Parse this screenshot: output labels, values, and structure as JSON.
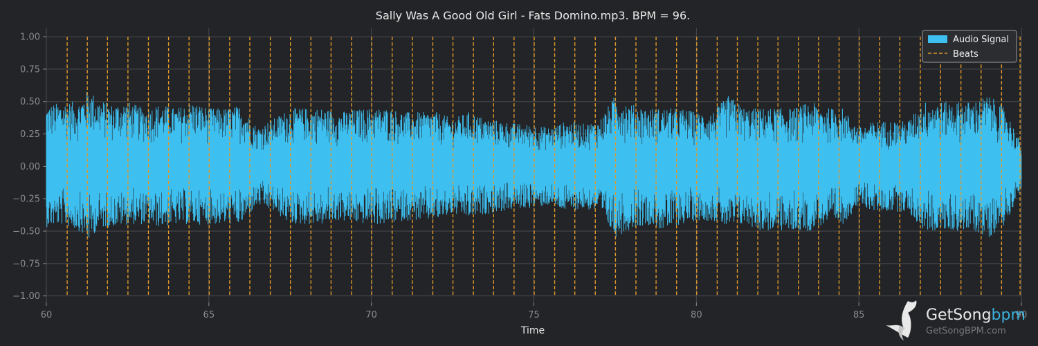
{
  "chart_data": {
    "type": "line",
    "title": "Sally Was A Good Old Girl - Fats Domino.mp3. BPM =  96.",
    "xlabel": "Time",
    "ylabel": "",
    "xlim": [
      60,
      90
    ],
    "ylim": [
      -1.05,
      1.07
    ],
    "x_ticks": [
      60,
      65,
      70,
      75,
      80,
      85,
      90
    ],
    "x_tick_labels": [
      "60",
      "65",
      "70",
      "75",
      "80",
      "85",
      "90"
    ],
    "y_ticks": [
      1.0,
      0.75,
      0.5,
      0.25,
      0.0,
      -0.25,
      -0.5,
      -0.75,
      -1.0
    ],
    "y_tick_labels": [
      "1.00",
      "0.75",
      "0.50",
      "0.25",
      "0.00",
      "−0.25",
      "−0.50",
      "−0.75",
      "−1.00"
    ],
    "grid": true,
    "legend_position": "top-right",
    "series": [
      {
        "name": "Audio Signal",
        "kind": "waveform",
        "color": "#3dbff0",
        "envelope_x": [
          60.0,
          60.5,
          61.0,
          61.3,
          61.6,
          62.0,
          62.5,
          63.0,
          63.5,
          64.0,
          64.5,
          65.0,
          65.5,
          66.0,
          66.5,
          67.0,
          67.5,
          68.0,
          68.5,
          69.0,
          69.5,
          70.0,
          70.5,
          71.0,
          71.5,
          72.0,
          72.5,
          73.0,
          73.5,
          74.0,
          74.5,
          75.0,
          75.5,
          76.0,
          76.5,
          77.0,
          77.5,
          78.0,
          78.5,
          79.0,
          79.5,
          80.0,
          80.5,
          81.0,
          81.5,
          82.0,
          82.5,
          83.0,
          83.5,
          84.0,
          84.5,
          85.0,
          85.5,
          86.0,
          86.5,
          87.0,
          87.5,
          88.0,
          88.5,
          89.0,
          89.5,
          90.0
        ],
        "envelope_max": [
          0.47,
          0.5,
          0.5,
          0.6,
          0.52,
          0.48,
          0.5,
          0.45,
          0.48,
          0.45,
          0.5,
          0.45,
          0.45,
          0.47,
          0.3,
          0.37,
          0.45,
          0.45,
          0.45,
          0.42,
          0.44,
          0.45,
          0.45,
          0.42,
          0.42,
          0.42,
          0.37,
          0.42,
          0.37,
          0.35,
          0.33,
          0.32,
          0.3,
          0.35,
          0.33,
          0.35,
          0.55,
          0.48,
          0.45,
          0.45,
          0.45,
          0.42,
          0.42,
          0.55,
          0.45,
          0.45,
          0.45,
          0.45,
          0.5,
          0.45,
          0.45,
          0.3,
          0.35,
          0.35,
          0.35,
          0.5,
          0.5,
          0.5,
          0.5,
          0.55,
          0.45,
          0.17
        ],
        "envelope_min": [
          -0.47,
          -0.45,
          -0.5,
          -0.58,
          -0.48,
          -0.47,
          -0.45,
          -0.45,
          -0.47,
          -0.45,
          -0.45,
          -0.45,
          -0.45,
          -0.45,
          -0.3,
          -0.35,
          -0.45,
          -0.45,
          -0.45,
          -0.42,
          -0.44,
          -0.45,
          -0.45,
          -0.42,
          -0.42,
          -0.42,
          -0.37,
          -0.4,
          -0.37,
          -0.35,
          -0.33,
          -0.32,
          -0.3,
          -0.35,
          -0.33,
          -0.35,
          -0.55,
          -0.48,
          -0.45,
          -0.5,
          -0.45,
          -0.42,
          -0.42,
          -0.48,
          -0.45,
          -0.5,
          -0.5,
          -0.5,
          -0.5,
          -0.45,
          -0.45,
          -0.3,
          -0.35,
          -0.35,
          -0.35,
          -0.5,
          -0.5,
          -0.5,
          -0.5,
          -0.55,
          -0.45,
          -0.17
        ]
      },
      {
        "name": "Beats",
        "kind": "vlines",
        "color": "#e39a2b",
        "x": [
          60.64,
          61.26,
          61.88,
          62.51,
          63.14,
          63.76,
          64.39,
          65.01,
          65.64,
          66.26,
          66.89,
          67.51,
          68.14,
          68.76,
          69.39,
          70.01,
          70.64,
          71.26,
          71.89,
          72.51,
          73.14,
          73.76,
          74.39,
          75.01,
          75.64,
          76.26,
          76.89,
          77.51,
          78.14,
          78.76,
          79.39,
          80.01,
          80.64,
          81.26,
          81.89,
          82.51,
          83.14,
          83.76,
          84.39,
          85.01,
          85.64,
          86.26,
          86.89,
          87.51,
          88.14,
          88.76,
          89.39,
          89.96
        ]
      }
    ]
  },
  "watermark": {
    "brand_get": "GetSong",
    "brand_bpm": "bpm",
    "url": "GetSongBPM.com"
  },
  "colors": {
    "background": "#232427",
    "grid": "#4a4b4f",
    "signal": "#3dbff0",
    "beats": "#e39a2b"
  }
}
